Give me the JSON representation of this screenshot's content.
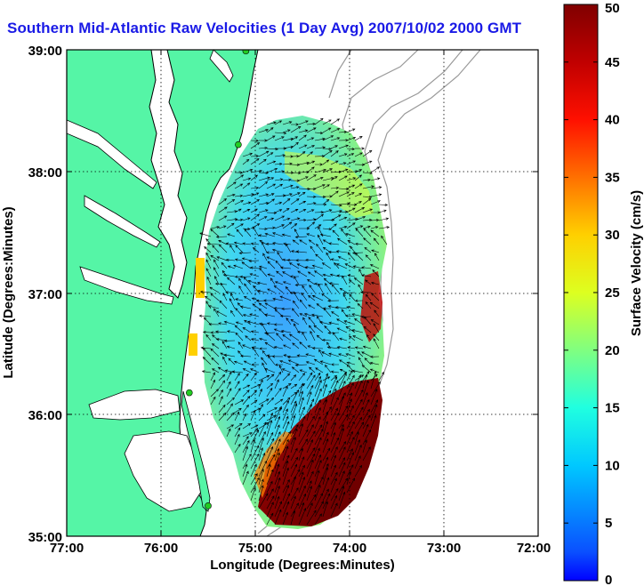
{
  "title": "Southern Mid-Atlantic Raw Velocities (1 Day Avg) 2007/10/02 2000 GMT",
  "xlabel": "Longitude (Degrees:Minutes)",
  "ylabel": "Latitude (Degrees:Minutes)",
  "x_ticks": [
    "77:00",
    "76:00",
    "75:00",
    "74:00",
    "73:00",
    "72:00"
  ],
  "y_ticks": [
    "39:00",
    "38:00",
    "37:00",
    "36:00",
    "35:00"
  ],
  "colorbar": {
    "label": "Surface Velocity (cm/s)",
    "range": [
      0,
      50
    ],
    "ticks": [
      "0",
      "5",
      "10",
      "15",
      "20",
      "25",
      "30",
      "35",
      "40",
      "45",
      "50"
    ]
  },
  "colors": {
    "land": "#55f5a6",
    "title": "#1a1ae6",
    "ocean": "#ffffff",
    "coast": "#000000",
    "bathymetry": "#999999",
    "stations": "#22cc22"
  },
  "map_extent": {
    "lon": [
      -77,
      -72
    ],
    "lat": [
      35,
      39
    ]
  },
  "stations": [
    {
      "lon": -75.1,
      "lat": 38.99
    },
    {
      "lon": -75.18,
      "lat": 38.22
    },
    {
      "lon": -75.7,
      "lat": 36.18
    },
    {
      "lon": -75.5,
      "lat": 35.25
    }
  ]
}
